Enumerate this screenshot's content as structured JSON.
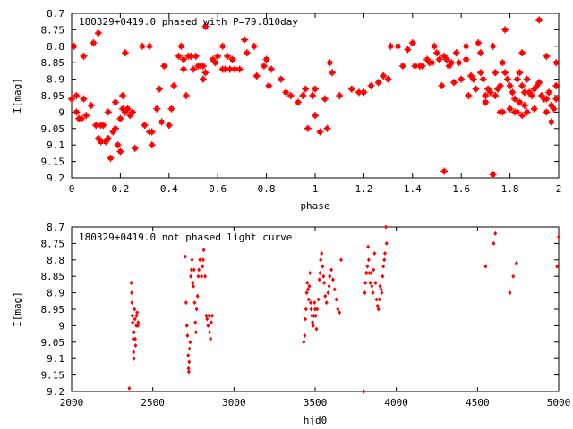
{
  "chart_data": [
    {
      "type": "scatter",
      "title": "180329+0419.0 phased with P=79.810day",
      "xlabel": "phase",
      "ylabel": "I[mag]",
      "xlim": [
        0,
        2
      ],
      "ylim": [
        8.7,
        9.2
      ],
      "y_inverted": true,
      "grid": false,
      "marker_color": "#ff0000",
      "xticks": [
        0,
        0.2,
        0.4,
        0.6,
        0.8,
        1,
        1.2,
        1.4,
        1.6,
        1.8,
        2
      ],
      "xtick_labels": [
        "0",
        "0.2",
        "0.4",
        "0.6",
        "0.8",
        "1",
        "1.2",
        "1.4",
        "1.6",
        "1.8",
        "2"
      ],
      "yticks": [
        8.7,
        8.75,
        8.8,
        8.85,
        8.9,
        8.95,
        9,
        9.05,
        9.1,
        9.15,
        9.2
      ],
      "ytick_labels": [
        "8.7",
        "8.75",
        "8.8",
        "8.85",
        "8.9",
        "8.95",
        "9",
        "9.05",
        "9.1",
        "9.15",
        "9.2"
      ],
      "points": [
        [
          0.0,
          8.96
        ],
        [
          0.01,
          8.8
        ],
        [
          0.02,
          8.95
        ],
        [
          0.02,
          9.0
        ],
        [
          0.03,
          9.02
        ],
        [
          0.04,
          9.02
        ],
        [
          0.05,
          8.96
        ],
        [
          0.05,
          8.83
        ],
        [
          0.06,
          9.01
        ],
        [
          0.08,
          8.98
        ],
        [
          0.09,
          8.79
        ],
        [
          0.1,
          9.04
        ],
        [
          0.11,
          8.76
        ],
        [
          0.11,
          9.08
        ],
        [
          0.12,
          9.04
        ],
        [
          0.12,
          9.09
        ],
        [
          0.13,
          9.04
        ],
        [
          0.14,
          9.09
        ],
        [
          0.15,
          9.08
        ],
        [
          0.15,
          9.0
        ],
        [
          0.16,
          9.14
        ],
        [
          0.17,
          9.06
        ],
        [
          0.18,
          9.05
        ],
        [
          0.18,
          8.97
        ],
        [
          0.19,
          9.1
        ],
        [
          0.2,
          9.12
        ],
        [
          0.2,
          9.02
        ],
        [
          0.21,
          8.99
        ],
        [
          0.21,
          8.95
        ],
        [
          0.22,
          9.0
        ],
        [
          0.22,
          8.82
        ],
        [
          0.23,
          8.99
        ],
        [
          0.24,
          9.01
        ],
        [
          0.25,
          9.0
        ],
        [
          0.26,
          9.11
        ],
        [
          0.29,
          8.8
        ],
        [
          0.3,
          9.04
        ],
        [
          0.32,
          8.8
        ],
        [
          0.32,
          9.06
        ],
        [
          0.33,
          9.1
        ],
        [
          0.33,
          9.06
        ],
        [
          0.35,
          8.99
        ],
        [
          0.36,
          8.93
        ],
        [
          0.37,
          9.03
        ],
        [
          0.38,
          8.86
        ],
        [
          0.4,
          9.04
        ],
        [
          0.41,
          8.99
        ],
        [
          0.42,
          8.92
        ],
        [
          0.44,
          8.83
        ],
        [
          0.45,
          8.8
        ],
        [
          0.46,
          8.87
        ],
        [
          0.46,
          8.84
        ],
        [
          0.47,
          8.95
        ],
        [
          0.48,
          8.83
        ],
        [
          0.49,
          8.83
        ],
        [
          0.5,
          8.87
        ],
        [
          0.51,
          8.83
        ],
        [
          0.52,
          8.86
        ],
        [
          0.53,
          8.86
        ],
        [
          0.54,
          8.9
        ],
        [
          0.54,
          8.86
        ],
        [
          0.55,
          8.88
        ],
        [
          0.55,
          8.74
        ],
        [
          0.58,
          8.84
        ],
        [
          0.59,
          8.85
        ],
        [
          0.6,
          8.83
        ],
        [
          0.62,
          8.87
        ],
        [
          0.62,
          8.8
        ],
        [
          0.63,
          8.87
        ],
        [
          0.64,
          8.83
        ],
        [
          0.65,
          8.87
        ],
        [
          0.66,
          8.84
        ],
        [
          0.67,
          8.87
        ],
        [
          0.67,
          8.87
        ],
        [
          0.69,
          8.87
        ],
        [
          0.71,
          8.78
        ],
        [
          0.72,
          8.82
        ],
        [
          0.75,
          8.8
        ],
        [
          0.76,
          8.89
        ],
        [
          0.79,
          8.86
        ],
        [
          0.8,
          8.84
        ],
        [
          0.81,
          8.92
        ],
        [
          0.82,
          8.87
        ],
        [
          0.86,
          8.9
        ],
        [
          0.88,
          8.94
        ],
        [
          0.9,
          8.95
        ],
        [
          0.93,
          8.97
        ],
        [
          0.95,
          8.95
        ],
        [
          0.96,
          8.93
        ],
        [
          0.97,
          9.05
        ],
        [
          0.99,
          8.95
        ],
        [
          1.0,
          9.01
        ],
        [
          1.0,
          8.93
        ],
        [
          1.02,
          9.06
        ],
        [
          1.04,
          8.96
        ],
        [
          1.05,
          9.05
        ],
        [
          1.06,
          8.85
        ],
        [
          1.07,
          8.88
        ],
        [
          1.1,
          8.95
        ],
        [
          1.15,
          8.93
        ],
        [
          1.18,
          8.94
        ],
        [
          1.2,
          8.94
        ],
        [
          1.23,
          8.92
        ],
        [
          1.26,
          8.91
        ],
        [
          1.28,
          8.89
        ],
        [
          1.3,
          8.9
        ],
        [
          1.31,
          8.8
        ],
        [
          1.34,
          8.8
        ],
        [
          1.36,
          8.86
        ],
        [
          1.38,
          8.81
        ],
        [
          1.4,
          8.79
        ],
        [
          1.41,
          8.86
        ],
        [
          1.43,
          8.86
        ],
        [
          1.44,
          8.86
        ],
        [
          1.46,
          8.84
        ],
        [
          1.47,
          8.85
        ],
        [
          1.48,
          8.85
        ],
        [
          1.49,
          8.8
        ],
        [
          1.5,
          8.82
        ],
        [
          1.51,
          8.84
        ],
        [
          1.52,
          8.92
        ],
        [
          1.53,
          8.83
        ],
        [
          1.54,
          8.84
        ],
        [
          1.55,
          8.86
        ],
        [
          1.56,
          8.85
        ],
        [
          1.57,
          8.91
        ],
        [
          1.58,
          8.82
        ],
        [
          1.59,
          8.85
        ],
        [
          1.6,
          8.9
        ],
        [
          1.62,
          8.84
        ],
        [
          1.63,
          8.95
        ],
        [
          1.64,
          8.89
        ],
        [
          1.65,
          8.9
        ],
        [
          1.66,
          8.93
        ],
        [
          1.67,
          8.79
        ],
        [
          1.68,
          8.88
        ],
        [
          1.69,
          8.9
        ],
        [
          1.7,
          8.95
        ],
        [
          1.71,
          8.93
        ],
        [
          1.72,
          8.94
        ],
        [
          1.73,
          8.8
        ],
        [
          1.74,
          8.88
        ],
        [
          1.75,
          8.93
        ],
        [
          1.76,
          8.92
        ],
        [
          1.77,
          8.85
        ],
        [
          1.78,
          8.88
        ],
        [
          1.79,
          8.9
        ],
        [
          1.8,
          8.92
        ],
        [
          1.81,
          8.94
        ],
        [
          1.82,
          8.96
        ],
        [
          1.83,
          8.9
        ],
        [
          1.84,
          8.88
        ],
        [
          1.85,
          8.92
        ],
        [
          1.86,
          8.94
        ],
        [
          1.87,
          8.9
        ],
        [
          1.88,
          8.94
        ],
        [
          1.89,
          8.95
        ],
        [
          1.9,
          8.93
        ],
        [
          1.91,
          8.92
        ],
        [
          1.92,
          8.91
        ],
        [
          1.93,
          8.95
        ],
        [
          1.94,
          8.96
        ],
        [
          1.95,
          8.96
        ],
        [
          1.96,
          8.94
        ],
        [
          1.97,
          8.98
        ],
        [
          1.98,
          8.99
        ],
        [
          1.99,
          8.92
        ],
        [
          1.99,
          8.96
        ],
        [
          1.84,
          8.97
        ],
        [
          1.86,
          8.98
        ],
        [
          1.87,
          9.0
        ],
        [
          1.9,
          8.99
        ],
        [
          1.95,
          9.0
        ],
        [
          1.97,
          9.03
        ],
        [
          1.74,
          8.95
        ],
        [
          1.76,
          9.0
        ],
        [
          1.77,
          9.0
        ],
        [
          1.8,
          8.99
        ],
        [
          1.82,
          9.0
        ],
        [
          1.83,
          9.0
        ],
        [
          1.85,
          9.01
        ],
        [
          1.53,
          9.18
        ],
        [
          1.73,
          9.19
        ],
        [
          1.62,
          8.8
        ],
        [
          1.92,
          8.72
        ],
        [
          1.7,
          8.97
        ],
        [
          1.68,
          8.82
        ],
        [
          1.78,
          8.75
        ],
        [
          1.85,
          8.82
        ],
        [
          1.95,
          8.83
        ],
        [
          1.99,
          8.85
        ]
      ]
    },
    {
      "type": "scatter",
      "title": "180329+0419.0 not phased light curve",
      "xlabel": "hjd0",
      "ylabel": "I[mag]",
      "xlim": [
        2000,
        5000
      ],
      "ylim": [
        8.7,
        9.2
      ],
      "y_inverted": true,
      "grid": false,
      "marker_color": "#ff0000",
      "xticks": [
        2000,
        2500,
        3000,
        3500,
        4000,
        4500,
        5000
      ],
      "xtick_labels": [
        "2000",
        "2500",
        "3000",
        "3500",
        "4000",
        "4500",
        "5000"
      ],
      "yticks": [
        8.7,
        8.75,
        8.8,
        8.85,
        8.9,
        8.95,
        9,
        9.05,
        9.1,
        9.15,
        9.2
      ],
      "ytick_labels": [
        "8.7",
        "8.75",
        "8.8",
        "8.85",
        "8.9",
        "8.95",
        "9",
        "9.05",
        "9.1",
        "9.15",
        "9.2"
      ],
      "points": [
        [
          2355,
          9.19
        ],
        [
          2368,
          8.87
        ],
        [
          2370,
          8.9
        ],
        [
          2372,
          8.93
        ],
        [
          2374,
          8.97
        ],
        [
          2376,
          8.99
        ],
        [
          2378,
          9.02
        ],
        [
          2380,
          9.04
        ],
        [
          2382,
          9.08
        ],
        [
          2384,
          9.1
        ],
        [
          2386,
          9.02
        ],
        [
          2388,
          8.95
        ],
        [
          2390,
          8.98
        ],
        [
          2392,
          9.04
        ],
        [
          2394,
          9.06
        ],
        [
          2398,
          9.0
        ],
        [
          2400,
          8.97
        ],
        [
          2404,
          8.96
        ],
        [
          2408,
          9.0
        ],
        [
          2410,
          8.99
        ],
        [
          2700,
          8.79
        ],
        [
          2705,
          8.93
        ],
        [
          2710,
          9.0
        ],
        [
          2714,
          9.03
        ],
        [
          2718,
          9.09
        ],
        [
          2720,
          9.13
        ],
        [
          2722,
          9.14
        ],
        [
          2724,
          9.11
        ],
        [
          2726,
          9.07
        ],
        [
          2730,
          9.05
        ],
        [
          2734,
          8.85
        ],
        [
          2738,
          8.83
        ],
        [
          2742,
          8.8
        ],
        [
          2746,
          8.87
        ],
        [
          2750,
          8.88
        ],
        [
          2754,
          8.83
        ],
        [
          2758,
          8.93
        ],
        [
          2762,
          8.99
        ],
        [
          2766,
          9.02
        ],
        [
          2770,
          8.95
        ],
        [
          2776,
          8.91
        ],
        [
          2780,
          8.85
        ],
        [
          2784,
          8.83
        ],
        [
          2790,
          8.8
        ],
        [
          2800,
          8.85
        ],
        [
          2806,
          8.82
        ],
        [
          2810,
          8.8
        ],
        [
          2814,
          8.77
        ],
        [
          2822,
          8.85
        ],
        [
          2830,
          8.97
        ],
        [
          2834,
          8.98
        ],
        [
          2840,
          9.0
        ],
        [
          2846,
          8.97
        ],
        [
          2850,
          9.02
        ],
        [
          2856,
          9.04
        ],
        [
          2860,
          8.99
        ],
        [
          2866,
          8.97
        ],
        [
          3430,
          9.05
        ],
        [
          3436,
          9.03
        ],
        [
          3440,
          8.98
        ],
        [
          3444,
          8.95
        ],
        [
          3448,
          8.9
        ],
        [
          3452,
          8.87
        ],
        [
          3456,
          8.89
        ],
        [
          3460,
          8.92
        ],
        [
          3464,
          8.88
        ],
        [
          3468,
          8.84
        ],
        [
          3472,
          8.93
        ],
        [
          3476,
          8.95
        ],
        [
          3480,
          8.97
        ],
        [
          3484,
          8.99
        ],
        [
          3488,
          9.0
        ],
        [
          3492,
          8.97
        ],
        [
          3496,
          8.93
        ],
        [
          3500,
          8.95
        ],
        [
          3504,
          8.97
        ],
        [
          3508,
          9.01
        ],
        [
          3512,
          8.95
        ],
        [
          3520,
          8.92
        ],
        [
          3526,
          8.86
        ],
        [
          3530,
          8.84
        ],
        [
          3534,
          8.8
        ],
        [
          3540,
          8.78
        ],
        [
          3546,
          8.82
        ],
        [
          3552,
          8.85
        ],
        [
          3556,
          8.87
        ],
        [
          3562,
          8.91
        ],
        [
          3570,
          8.93
        ],
        [
          3580,
          8.9
        ],
        [
          3586,
          8.88
        ],
        [
          3590,
          8.85
        ],
        [
          3600,
          8.83
        ],
        [
          3610,
          8.86
        ],
        [
          3620,
          8.89
        ],
        [
          3630,
          8.92
        ],
        [
          3640,
          8.95
        ],
        [
          3650,
          8.96
        ],
        [
          3660,
          8.8
        ],
        [
          3800,
          9.2
        ],
        [
          3806,
          8.9
        ],
        [
          3810,
          8.87
        ],
        [
          3814,
          8.84
        ],
        [
          3818,
          8.84
        ],
        [
          3822,
          8.82
        ],
        [
          3826,
          8.76
        ],
        [
          3830,
          8.8
        ],
        [
          3834,
          8.84
        ],
        [
          3840,
          8.87
        ],
        [
          3846,
          8.84
        ],
        [
          3850,
          8.88
        ],
        [
          3856,
          8.9
        ],
        [
          3860,
          8.83
        ],
        [
          3866,
          8.78
        ],
        [
          3872,
          8.87
        ],
        [
          3878,
          8.92
        ],
        [
          3884,
          8.94
        ],
        [
          3890,
          8.95
        ],
        [
          3896,
          8.92
        ],
        [
          3900,
          8.88
        ],
        [
          3906,
          8.89
        ],
        [
          3910,
          8.9
        ],
        [
          3916,
          8.85
        ],
        [
          3920,
          8.82
        ],
        [
          3926,
          8.8
        ],
        [
          3930,
          8.78
        ],
        [
          3936,
          8.7
        ],
        [
          3940,
          8.75
        ],
        [
          4550,
          8.82
        ],
        [
          4600,
          8.75
        ],
        [
          4610,
          8.72
        ],
        [
          4700,
          8.9
        ],
        [
          4720,
          8.85
        ],
        [
          4740,
          8.81
        ],
        [
          4990,
          8.82
        ],
        [
          5000,
          8.73
        ]
      ]
    }
  ]
}
